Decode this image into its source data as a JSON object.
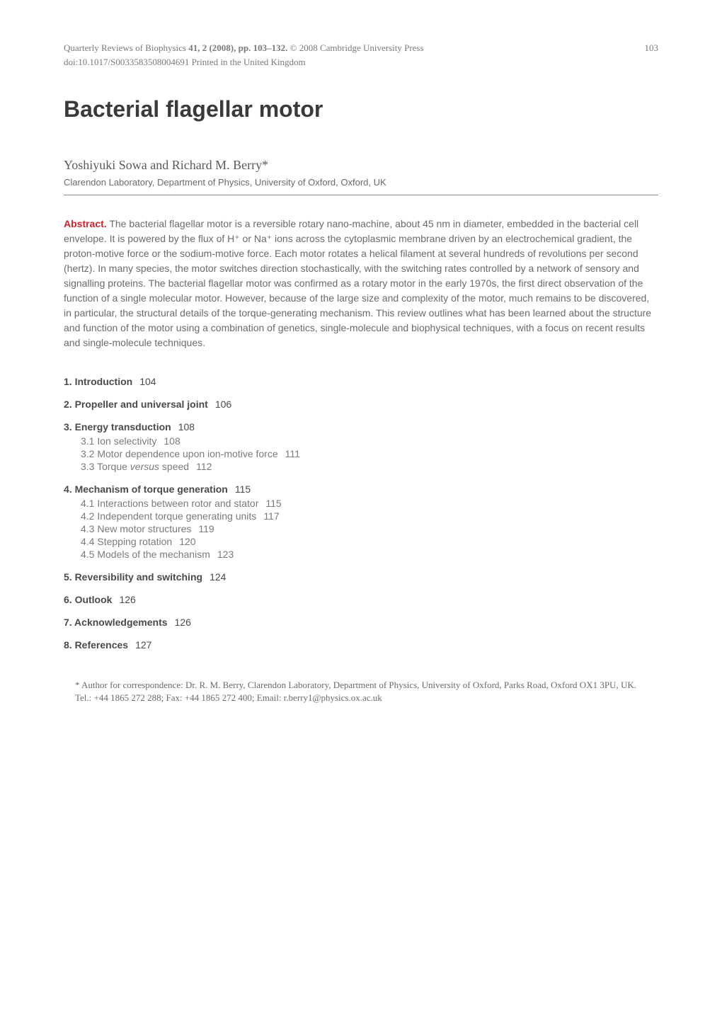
{
  "header": {
    "journal": "Quarterly Reviews of Biophysics",
    "volume_issue": "41, 2 (2008), pp. 103–132.",
    "copyright": "© 2008 Cambridge University Press",
    "page_number": "103",
    "doi_line": "doi:10.1017/S0033583508004691   Printed in the United Kingdom"
  },
  "title": "Bacterial flagellar motor",
  "authors": "Yoshiyuki Sowa and Richard M. Berry*",
  "affiliation": "Clarendon Laboratory, Department of Physics, University of Oxford, Oxford, UK",
  "abstract": {
    "label": "Abstract.",
    "text": "The bacterial flagellar motor is a reversible rotary nano-machine, about 45 nm in diameter, embedded in the bacterial cell envelope. It is powered by the flux of H⁺ or Na⁺ ions across the cytoplasmic membrane driven by an electrochemical gradient, the proton-motive force or the sodium-motive force. Each motor rotates a helical filament at several hundreds of revolutions per second (hertz). In many species, the motor switches direction stochastically, with the switching rates controlled by a network of sensory and signalling proteins. The bacterial flagellar motor was confirmed as a rotary motor in the early 1970s, the first direct observation of the function of a single molecular motor. However, because of the large size and complexity of the motor, much remains to be discovered, in particular, the structural details of the torque-generating mechanism. This review outlines what has been learned about the structure and function of the motor using a combination of genetics, single-molecule and biophysical techniques, with a focus on recent results and single-molecule techniques."
  },
  "toc": [
    {
      "num": "1.",
      "title": "Introduction",
      "page": "104",
      "subs": []
    },
    {
      "num": "2.",
      "title": "Propeller and universal joint",
      "page": "106",
      "subs": []
    },
    {
      "num": "3.",
      "title": "Energy transduction",
      "page": "108",
      "subs": [
        {
          "num": "3.1",
          "title": "Ion selectivity",
          "page": "108"
        },
        {
          "num": "3.2",
          "title": "Motor dependence upon ion-motive force",
          "page": "111"
        },
        {
          "num": "3.3",
          "title_html": "Torque <span class=\"italic\">versus</span> speed",
          "page": "112"
        }
      ]
    },
    {
      "num": "4.",
      "title": "Mechanism of torque generation",
      "page": "115",
      "subs": [
        {
          "num": "4.1",
          "title": "Interactions between rotor and stator",
          "page": "115"
        },
        {
          "num": "4.2",
          "title": "Independent torque generating units",
          "page": "117"
        },
        {
          "num": "4.3",
          "title": "New motor structures",
          "page": "119"
        },
        {
          "num": "4.4",
          "title": "Stepping rotation",
          "page": "120"
        },
        {
          "num": "4.5",
          "title": "Models of the mechanism",
          "page": "123"
        }
      ]
    },
    {
      "num": "5.",
      "title": "Reversibility and switching",
      "page": "124",
      "subs": []
    },
    {
      "num": "6.",
      "title": "Outlook",
      "page": "126",
      "subs": []
    },
    {
      "num": "7.",
      "title": "Acknowledgements",
      "page": "126",
      "subs": []
    },
    {
      "num": "8.",
      "title": "References",
      "page": "127",
      "subs": []
    }
  ],
  "footer": {
    "line1": "* Author for correspondence: Dr. R. M. Berry, Clarendon Laboratory, Department of Physics, University of Oxford, Parks Road, Oxford OX1 3PU, UK.",
    "line2": "Tel.: +44 1865 272 288; Fax: +44 1865 272 400; Email: r.berry1@physics.ox.ac.uk"
  },
  "colors": {
    "text": "#5a5a5a",
    "title": "#3a3a3a",
    "abstract_label": "#d4202a",
    "background": "#ffffff",
    "rule": "#888888"
  },
  "fonts": {
    "title_family": "Arial, Helvetica, sans-serif",
    "body_family": "Georgia, Times New Roman, serif",
    "title_size_pt": 24,
    "body_size_pt": 10.5,
    "header_size_pt": 9.5
  }
}
